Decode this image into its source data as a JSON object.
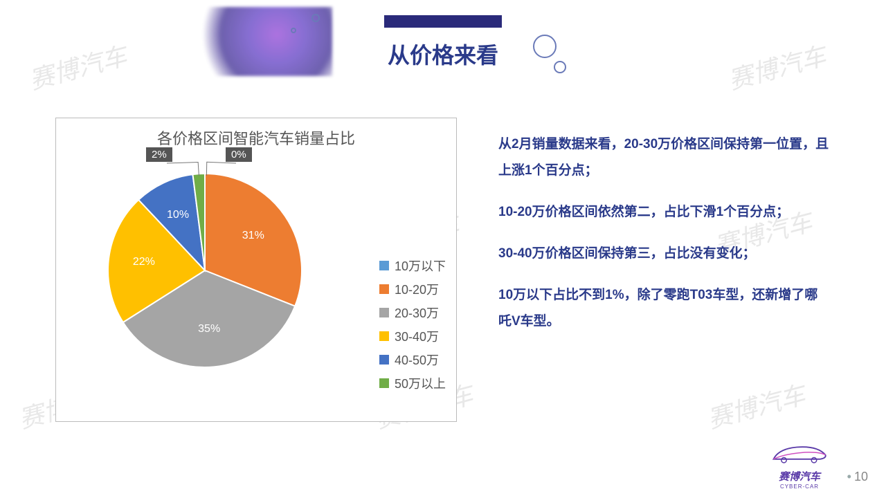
{
  "header": {
    "title": "从价格来看",
    "bar_color": "#2a2a7a",
    "title_color": "#2a3a8a"
  },
  "watermark_text": "赛博汽车",
  "pie_chart": {
    "type": "pie",
    "title": "各价格区间智能汽车销量占比",
    "title_fontsize": 22,
    "title_color": "#555555",
    "background_color": "#ffffff",
    "border_color": "#bbbbbb",
    "slices": [
      {
        "label": "10万以下",
        "value": 0,
        "percent_label": "0%",
        "color": "#5b9bd5"
      },
      {
        "label": "10-20万",
        "value": 31,
        "percent_label": "31%",
        "color": "#ed7d31"
      },
      {
        "label": "20-30万",
        "value": 35,
        "percent_label": "35%",
        "color": "#a5a5a5"
      },
      {
        "label": "30-40万",
        "value": 22,
        "percent_label": "22%",
        "color": "#ffc000"
      },
      {
        "label": "40-50万",
        "value": 10,
        "percent_label": "10%",
        "color": "#4472c4"
      },
      {
        "label": "50万以上",
        "value": 2,
        "percent_label": "2%",
        "color": "#70ad47"
      }
    ],
    "slice_separator_color": "#ffffff",
    "label_color_in_slice": "#ffffff",
    "callout_bg": "#595959",
    "legend_fontsize": 18,
    "legend_color": "#555555"
  },
  "text_block": {
    "color": "#2a3a8a",
    "fontsize": 19,
    "paragraphs": [
      "从2月销量数据来看，20-30万价格区间保持第一位置，且上涨1个百分点；",
      "10-20万价格区间依然第二，占比下滑1个百分点；",
      "30-40万价格区间保持第三，占比没有变化；",
      "10万以下占比不到1%，除了零跑T03车型，还新增了哪吒V车型。"
    ]
  },
  "logo": {
    "brand": "赛博汽车",
    "sub": "CYBER-CAR",
    "color": "#5a3aa8"
  },
  "page_number": "10"
}
